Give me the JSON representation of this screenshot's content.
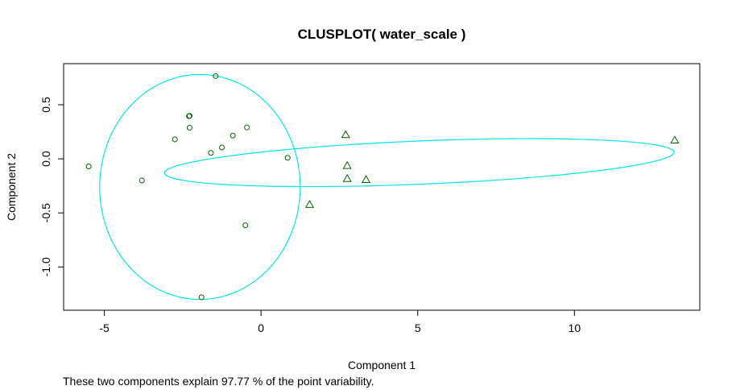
{
  "chart_data": {
    "type": "scatter",
    "title": "CLUSPLOT( water_scale )",
    "xlabel": "Component 1",
    "ylabel": "Component 2",
    "footnote": "These two components explain 97.77 % of the point variability.",
    "xlim": [
      -6.3,
      14.0
    ],
    "ylim": [
      -1.4,
      0.88
    ],
    "x_ticks": [
      -5,
      0,
      5,
      10
    ],
    "x_tick_labels": [
      "-5",
      "0",
      "5",
      "10"
    ],
    "y_ticks": [
      -1.0,
      -0.5,
      0.0,
      0.5
    ],
    "y_tick_labels": [
      "-1.0",
      "-0.5",
      "0.0",
      "0.5"
    ],
    "grid": false,
    "point_color": "#006400",
    "ellipse_color": "#00e5ee",
    "series": [
      {
        "marker": "circle",
        "points": [
          [
            -1.45,
            0.765
          ],
          [
            -2.3,
            0.395
          ],
          [
            -2.28,
            0.398
          ],
          [
            -2.28,
            0.288
          ],
          [
            -2.75,
            0.18
          ],
          [
            -0.45,
            0.29
          ],
          [
            -0.9,
            0.215
          ],
          [
            -1.25,
            0.105
          ],
          [
            -1.6,
            0.055
          ],
          [
            0.85,
            0.01
          ],
          [
            -5.5,
            -0.07
          ],
          [
            -3.8,
            -0.2
          ],
          [
            -0.5,
            -0.615
          ],
          [
            -1.9,
            -1.28
          ]
        ]
      },
      {
        "marker": "triangle",
        "points": [
          [
            2.7,
            0.22
          ],
          [
            13.2,
            0.17
          ],
          [
            2.75,
            -0.065
          ],
          [
            2.75,
            -0.185
          ],
          [
            3.35,
            -0.195
          ],
          [
            1.55,
            -0.425
          ]
        ]
      }
    ],
    "clusters": [
      {
        "center": [
          -1.95,
          -0.26
        ],
        "rx": 3.2,
        "ry": 1.04,
        "angle": 0
      },
      {
        "center": [
          5.05,
          -0.035
        ],
        "rx": 8.15,
        "ry": 0.2,
        "angle": 3.9
      }
    ]
  }
}
